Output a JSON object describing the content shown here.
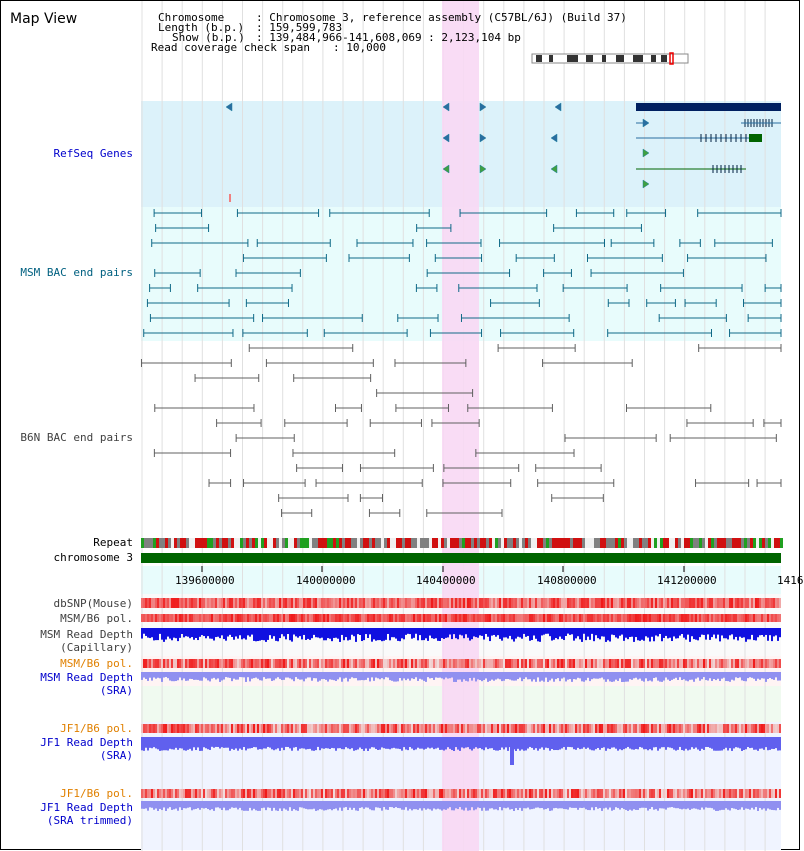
{
  "title": "Map View",
  "info": {
    "chromosome_label": "Chromosome",
    "chromosome_value": ": Chromosome 3, reference assembly (C57BL/6J) (Build 37)",
    "length_label": "Length (b.p.)",
    "length_value": ": 159,599,783",
    "show_label": "Show (b.p.)",
    "show_value": ": 139,484,966-141,608,069 : 2,123,104 bp",
    "span_label": "Read coverage check span",
    "span_value": ": 10,000"
  },
  "tracks": {
    "refseq": "RefSeq Genes",
    "msm_bac": "MSM BAC end pairs",
    "b6n_bac": "B6N BAC end pairs",
    "repeat": "Repeat",
    "chromosome": "chromosome 3",
    "dbsnp": "dbSNP(Mouse)",
    "msm_b6_pol_1": "MSM/B6 pol.",
    "msm_depth_cap_1": "MSM Read Depth",
    "msm_depth_cap_2": "(Capillary)",
    "msm_b6_pol_2": "MSM/B6 pol.",
    "msm_depth_sra_1": "MSM Read Depth",
    "msm_depth_sra_2": "(SRA)",
    "jf1_b6_pol_1": "JF1/B6 pol.",
    "jf1_depth_sra_1": "JF1 Read Depth",
    "jf1_depth_sra_2": "(SRA)",
    "jf1_b6_pol_2": "JF1/B6 pol.",
    "jf1_depth_trim_1": "JF1 Read Depth",
    "jf1_depth_trim_2": "(SRA trimmed)"
  },
  "axis_ticks": [
    "139600000",
    "140000000",
    "140400000",
    "140800000",
    "141200000",
    "1416"
  ],
  "colors": {
    "refseq_label": "#0000cc",
    "msm_label": "#006080",
    "b6n_label": "#404040",
    "orange_label": "#e08000",
    "blue_label": "#0000cc",
    "highlight": "#f8d8f4",
    "chrom_green": "#006400"
  }
}
